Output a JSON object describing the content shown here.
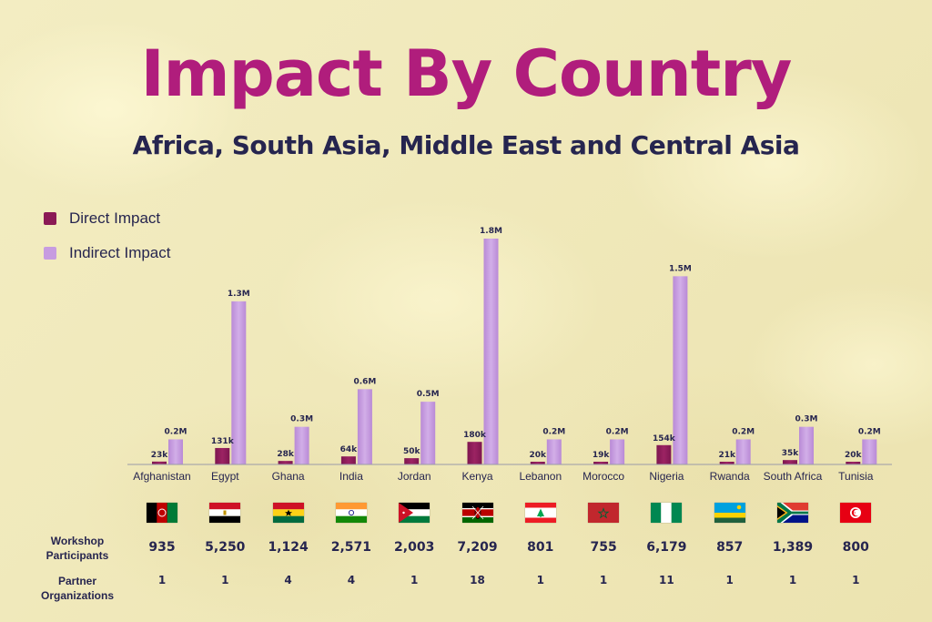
{
  "header": {
    "title": "Impact By Country",
    "subtitle": "Africa, South Asia, Middle East and Central Asia"
  },
  "legend": [
    {
      "label": "Direct Impact",
      "color": "#8b1a55"
    },
    {
      "label": "Indirect Impact",
      "color": "#c79ce0"
    }
  ],
  "chart_data": {
    "type": "bar",
    "categories": [
      "Afghanistan",
      "Egypt",
      "Ghana",
      "India",
      "Jordan",
      "Kenya",
      "Lebanon",
      "Morocco",
      "Nigeria",
      "Rwanda",
      "South Africa",
      "Tunisia"
    ],
    "series": [
      {
        "name": "Direct Impact",
        "values": [
          23000,
          131000,
          28000,
          64000,
          50000,
          180000,
          20000,
          19000,
          154000,
          21000,
          35000,
          20000
        ],
        "labels": [
          "23k",
          "131k",
          "28k",
          "64k",
          "50k",
          "180k",
          "20k",
          "19k",
          "154k",
          "21k",
          "35k",
          "20k"
        ]
      },
      {
        "name": "Indirect Impact",
        "values": [
          200000,
          1300000,
          300000,
          600000,
          500000,
          1800000,
          200000,
          200000,
          1500000,
          200000,
          300000,
          200000
        ],
        "labels": [
          "0.2M",
          "1.3M",
          "0.3M",
          "0.6M",
          "0.5M",
          "1.8M",
          "0.2M",
          "0.2M",
          "1.5M",
          "0.2M",
          "0.3M",
          "0.2M"
        ]
      }
    ],
    "ylim": [
      0,
      1800000
    ],
    "legend_position": "top-left"
  },
  "table": {
    "rows": [
      {
        "label_line1": "Workshop",
        "label_line2": "Participants",
        "values": [
          "935",
          "5,250",
          "1,124",
          "2,571",
          "2,003",
          "7,209",
          "801",
          "755",
          "6,179",
          "857",
          "1,389",
          "800"
        ]
      },
      {
        "label_line1": "Partner",
        "label_line2": "Organizations",
        "values": [
          "1",
          "1",
          "4",
          "4",
          "1",
          "18",
          "1",
          "1",
          "11",
          "1",
          "1",
          "1"
        ]
      }
    ]
  },
  "flags": [
    "afghanistan-flag-icon",
    "egypt-flag-icon",
    "ghana-flag-icon",
    "india-flag-icon",
    "jordan-flag-icon",
    "kenya-flag-icon",
    "lebanon-flag-icon",
    "morocco-flag-icon",
    "nigeria-flag-icon",
    "rwanda-flag-icon",
    "south-africa-flag-icon",
    "tunisia-flag-icon"
  ]
}
